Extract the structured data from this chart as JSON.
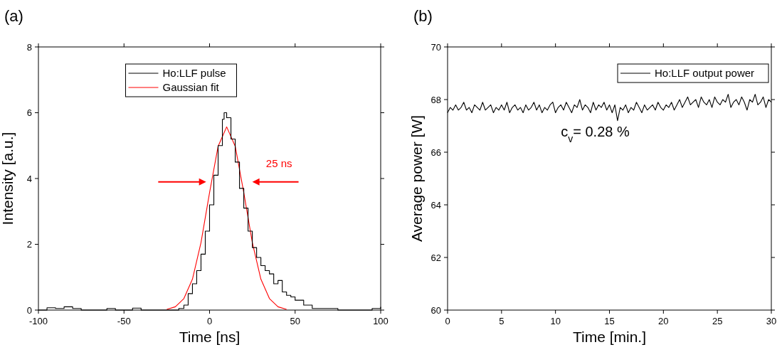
{
  "chart_data": [
    {
      "type": "line",
      "title": "(a)",
      "xlabel": "Time [ns]",
      "ylabel": "Intensity [a.u.]",
      "xlim": [
        -100,
        100
      ],
      "xticks": [
        -100,
        -50,
        0,
        50,
        100
      ],
      "ylim": [
        0,
        8
      ],
      "yticks": [
        0,
        2,
        4,
        6,
        8
      ],
      "legend": "top",
      "grid": false,
      "annotations": [
        "25 ns"
      ],
      "series": [
        {
          "name": "Ho:LLF pulse",
          "type": "step",
          "color": "#000000",
          "x": [
            -100,
            -95,
            -90,
            -85,
            -80,
            -75,
            -70,
            -60,
            -55,
            -45,
            -40,
            -18,
            -15,
            -12.5,
            -10,
            -7.5,
            -5,
            -2.5,
            0,
            2.5,
            5,
            7.5,
            8.5,
            10,
            12.5,
            15,
            17.5,
            20,
            22.5,
            25,
            27.5,
            30,
            32.5,
            35,
            37.5,
            40,
            42.5,
            45,
            47.5,
            50,
            55,
            60,
            65,
            70,
            75,
            80,
            90,
            95,
            100
          ],
          "values": [
            0,
            0.07,
            0.05,
            0.1,
            0.05,
            0,
            0,
            0.05,
            0,
            0.06,
            0,
            0.05,
            0.15,
            0.5,
            0.8,
            1.2,
            1.7,
            2.4,
            3.2,
            4.1,
            5.0,
            5.8,
            6.0,
            5.85,
            5.2,
            4.5,
            3.7,
            3.1,
            2.4,
            1.9,
            1.6,
            1.35,
            1.2,
            1.1,
            0.8,
            0.9,
            0.55,
            0.45,
            0.4,
            0.3,
            0.15,
            0.05,
            0.05,
            0.05,
            0,
            0,
            0,
            0.05,
            0.1
          ]
        },
        {
          "name": "Gaussian fit",
          "type": "line",
          "color": "#ff0000",
          "x": [
            -25,
            -20,
            -15,
            -10,
            -5,
            0,
            5,
            10,
            15,
            20,
            25,
            30,
            35,
            40,
            45
          ],
          "values": [
            0.02,
            0.1,
            0.35,
            0.94,
            2.05,
            3.57,
            4.98,
            5.57,
            4.98,
            3.57,
            2.05,
            0.94,
            0.35,
            0.1,
            0.02
          ]
        }
      ]
    },
    {
      "type": "line",
      "title": "(b)",
      "xlabel": "Time [min.]",
      "ylabel": "Average power [W]",
      "xlim": [
        0,
        30
      ],
      "xticks": [
        0,
        5,
        10,
        15,
        20,
        25,
        30
      ],
      "ylim": [
        60,
        70
      ],
      "yticks": [
        60,
        62,
        64,
        66,
        68,
        70
      ],
      "legend": "top right",
      "grid": false,
      "annotations": [
        "c$_{v}$= 0.28 %"
      ],
      "series": [
        {
          "name": "Ho:LLF output power",
          "color": "#000000",
          "x": [
            0,
            0.25,
            0.5,
            0.75,
            1,
            1.25,
            1.5,
            1.75,
            2,
            2.25,
            2.5,
            2.75,
            3,
            3.25,
            3.5,
            3.75,
            4,
            4.25,
            4.5,
            4.75,
            5,
            5.25,
            5.5,
            5.75,
            6,
            6.25,
            6.5,
            6.75,
            7,
            7.25,
            7.5,
            7.75,
            8,
            8.25,
            8.5,
            8.75,
            9,
            9.25,
            9.5,
            9.75,
            10,
            10.25,
            10.5,
            10.75,
            11,
            11.25,
            11.5,
            11.75,
            12,
            12.25,
            12.5,
            12.75,
            13,
            13.25,
            13.5,
            13.75,
            14,
            14.25,
            14.5,
            14.75,
            15,
            15.25,
            15.5,
            15.75,
            16,
            16.25,
            16.5,
            16.75,
            17,
            17.25,
            17.5,
            17.75,
            18,
            18.25,
            18.5,
            18.75,
            19,
            19.25,
            19.5,
            19.75,
            20,
            20.25,
            20.5,
            20.75,
            21,
            21.25,
            21.5,
            21.75,
            22,
            22.25,
            22.5,
            22.75,
            23,
            23.25,
            23.5,
            23.75,
            24,
            24.25,
            24.5,
            24.75,
            25,
            25.25,
            25.5,
            25.75,
            26,
            26.25,
            26.5,
            26.75,
            27,
            27.25,
            27.5,
            27.75,
            28,
            28.25,
            28.5,
            28.75,
            29,
            29.25,
            29.5,
            29.75,
            30
          ],
          "values": [
            67.5,
            67.7,
            67.6,
            67.8,
            67.6,
            67.7,
            67.9,
            67.6,
            67.7,
            67.5,
            67.8,
            67.7,
            67.6,
            67.9,
            67.6,
            67.7,
            67.8,
            67.5,
            67.7,
            67.6,
            67.8,
            67.6,
            67.9,
            67.5,
            67.7,
            67.8,
            67.6,
            67.7,
            67.5,
            67.8,
            67.6,
            67.7,
            67.9,
            67.6,
            67.8,
            67.5,
            67.7,
            67.6,
            67.8,
            67.9,
            67.5,
            67.7,
            67.8,
            67.6,
            67.9,
            67.7,
            67.5,
            67.8,
            67.7,
            68.0,
            67.6,
            67.8,
            67.7,
            67.5,
            67.9,
            67.6,
            67.8,
            67.7,
            67.9,
            67.6,
            67.8,
            67.5,
            67.8,
            67.2,
            67.7,
            67.6,
            67.8,
            67.5,
            67.7,
            67.6,
            67.9,
            67.7,
            67.5,
            67.8,
            67.6,
            67.7,
            67.8,
            67.6,
            67.9,
            67.7,
            67.6,
            67.8,
            67.7,
            67.9,
            67.6,
            67.8,
            68.0,
            67.7,
            67.9,
            68.1,
            67.8,
            67.9,
            68.0,
            67.7,
            68.1,
            67.9,
            67.8,
            68.0,
            67.7,
            68.1,
            67.9,
            67.8,
            68.0,
            67.9,
            68.2,
            67.7,
            67.9,
            68.0,
            67.8,
            68.1,
            67.9,
            67.6,
            68.0,
            67.9,
            68.2,
            67.8,
            67.9,
            68.1,
            67.7,
            68.0,
            67.9
          ]
        }
      ]
    }
  ]
}
